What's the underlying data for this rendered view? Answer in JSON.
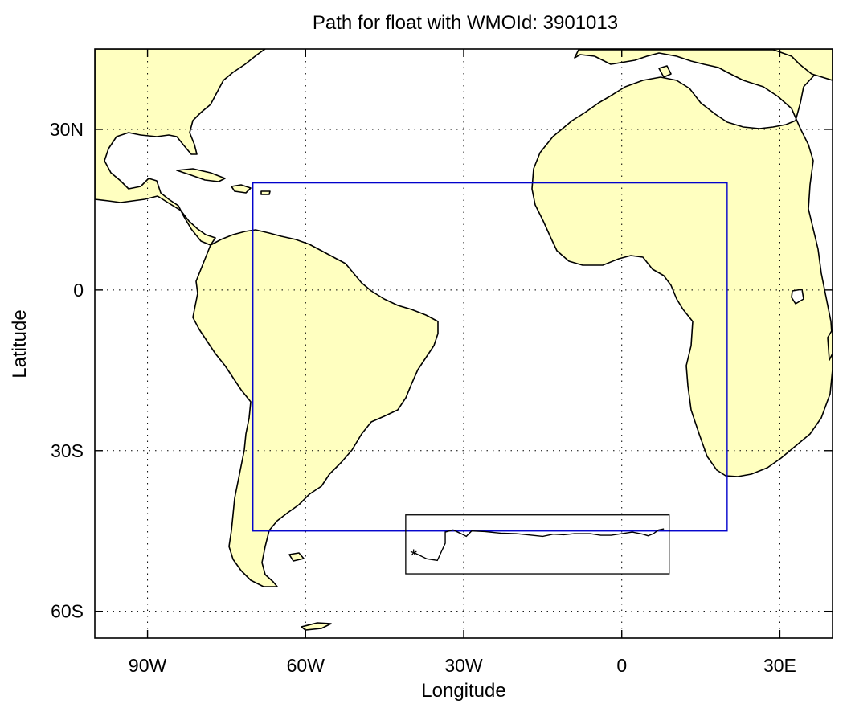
{
  "title": "Path for float with WMOId: 3901013",
  "axes": {
    "xlabel": "Longitude",
    "ylabel": "Latitude",
    "x_range": [
      -100,
      40
    ],
    "y_range": [
      -65,
      45
    ],
    "x_ticks": [
      {
        "value": -90,
        "label": "90W"
      },
      {
        "value": -60,
        "label": "60W"
      },
      {
        "value": -30,
        "label": "30W"
      },
      {
        "value": 0,
        "label": "0"
      },
      {
        "value": 30,
        "label": "30E"
      }
    ],
    "y_ticks": [
      {
        "value": 30,
        "label": "30N"
      },
      {
        "value": 0,
        "label": "0"
      },
      {
        "value": -30,
        "label": "30S"
      },
      {
        "value": -60,
        "label": "60S"
      }
    ],
    "grid": true,
    "grid_style": "dotted"
  },
  "colors": {
    "land": "#ffffc0",
    "ocean": "#ffffff",
    "coastline": "#000000",
    "region_box": "#0000cc",
    "track_box": "#000000",
    "track": "#000000"
  },
  "map": {
    "region_box": {
      "lon_min": -70,
      "lon_max": 20,
      "lat_min": -45,
      "lat_max": 20
    },
    "track_box": {
      "lon_min": -41,
      "lon_max": 9,
      "lat_min": -53,
      "lat_max": -42
    },
    "float_start": {
      "lon": -39.5,
      "lat": -49,
      "marker": "*"
    },
    "float_track": [
      [
        -39.5,
        -49
      ],
      [
        -37,
        -50.2
      ],
      [
        -35,
        -50.5
      ],
      [
        -34.3,
        -49
      ],
      [
        -33.5,
        -47.3
      ],
      [
        -33.5,
        -45.2
      ],
      [
        -32,
        -44.8
      ],
      [
        -30.5,
        -45.5
      ],
      [
        -29.5,
        -46
      ],
      [
        -28.5,
        -45
      ],
      [
        -26,
        -45.1
      ],
      [
        -23,
        -45.4
      ],
      [
        -20,
        -45.5
      ],
      [
        -17,
        -45.8
      ],
      [
        -15,
        -46
      ],
      [
        -13,
        -45.6
      ],
      [
        -11,
        -45.7
      ],
      [
        -9,
        -45.5
      ],
      [
        -6,
        -45.5
      ],
      [
        -4,
        -45.8
      ],
      [
        -2,
        -45.8
      ],
      [
        0,
        -45.5
      ],
      [
        2,
        -45.2
      ],
      [
        4,
        -45.6
      ],
      [
        5,
        -45.9
      ],
      [
        6,
        -45.5
      ],
      [
        7,
        -44.8
      ],
      [
        8,
        -44.6
      ]
    ]
  },
  "chart_data": {
    "type": "map",
    "title": "Path for float with WMOId: 3901013",
    "xlabel": "Longitude",
    "ylabel": "Latitude",
    "xlim": [
      -100,
      40
    ],
    "ylim": [
      -65,
      45
    ],
    "grid": true,
    "series": [
      {
        "name": "",
        "kind": "track",
        "x": [
          -39.5,
          -37,
          -35,
          -34.3,
          -33.5,
          -33.5,
          -32,
          -30.5,
          -29.5,
          -28.5,
          -26,
          -23,
          -20,
          -17,
          -15,
          -13,
          -11,
          -9,
          -6,
          -4,
          -2,
          0,
          2,
          4,
          5,
          6,
          7,
          8
        ],
        "y": [
          -49,
          -50.2,
          -50.5,
          -49,
          -47.3,
          -45.2,
          -44.8,
          -45.5,
          -46,
          -45,
          -45.1,
          -45.4,
          -45.5,
          -45.8,
          -46,
          -45.6,
          -45.7,
          -45.5,
          -45.5,
          -45.8,
          -45.8,
          -45.5,
          -45.2,
          -45.6,
          -45.9,
          -45.5,
          -44.8,
          -44.6
        ]
      }
    ]
  }
}
